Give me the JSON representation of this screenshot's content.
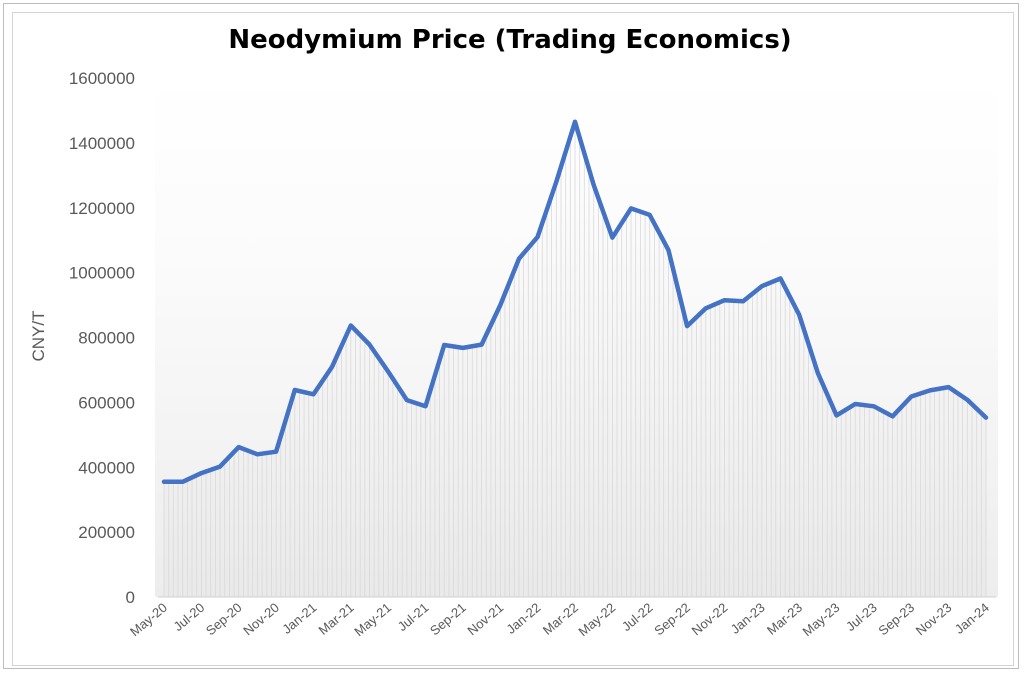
{
  "chart_data": {
    "type": "line",
    "title": "Neodymium Price (Trading Economics)",
    "xlabel": "",
    "ylabel": "CNY/T",
    "ylim": [
      0,
      1600000
    ],
    "yticks": [
      0,
      200000,
      400000,
      600000,
      800000,
      1000000,
      1200000,
      1400000,
      1600000
    ],
    "ytick_labels": [
      "0",
      "200000",
      "400000",
      "600000",
      "800000",
      "1000000",
      "1200000",
      "1400000",
      "1600000"
    ],
    "x": [
      "May-20",
      "Jun-20",
      "Jul-20",
      "Aug-20",
      "Sep-20",
      "Oct-20",
      "Nov-20",
      "Dec-20",
      "Jan-21",
      "Feb-21",
      "Mar-21",
      "Apr-21",
      "May-21",
      "Jun-21",
      "Jul-21",
      "Aug-21",
      "Sep-21",
      "Oct-21",
      "Nov-21",
      "Dec-21",
      "Jan-22",
      "Feb-22",
      "Mar-22",
      "Apr-22",
      "May-22",
      "Jun-22",
      "Jul-22",
      "Aug-22",
      "Sep-22",
      "Oct-22",
      "Nov-22",
      "Dec-22",
      "Jan-23",
      "Feb-23",
      "Mar-23",
      "Apr-23",
      "May-23",
      "Jun-23",
      "Jul-23",
      "Aug-23",
      "Sep-23",
      "Oct-23",
      "Nov-23",
      "Dec-23",
      "Jan-24"
    ],
    "xtick_labels": [
      "May-20",
      "Jul-20",
      "Sep-20",
      "Nov-20",
      "Jan-21",
      "Mar-21",
      "May-21",
      "Jul-21",
      "Sep-21",
      "Nov-21",
      "Jan-22",
      "Mar-22",
      "May-22",
      "Jul-22",
      "Sep-22",
      "Nov-22",
      "Jan-23",
      "Mar-23",
      "May-23",
      "Jul-23",
      "Sep-23",
      "Nov-23",
      "Jan-24"
    ],
    "series": [
      {
        "values": [
          355000,
          355000,
          382000,
          402000,
          462000,
          440000,
          448000,
          638000,
          625000,
          710000,
          837000,
          778000,
          695000,
          607000,
          588000,
          777000,
          768000,
          778000,
          900000,
          1043000,
          1110000,
          1280000,
          1465000,
          1270000,
          1108000,
          1198000,
          1178000,
          1070000,
          835000,
          890000,
          915000,
          912000,
          958000,
          982000,
          870000,
          690000,
          560000,
          595000,
          588000,
          557000,
          618000,
          637000,
          647000,
          608000,
          553000
        ],
        "color": "#4472c4"
      }
    ],
    "area_fill": true,
    "grid": false,
    "legend": "none"
  }
}
